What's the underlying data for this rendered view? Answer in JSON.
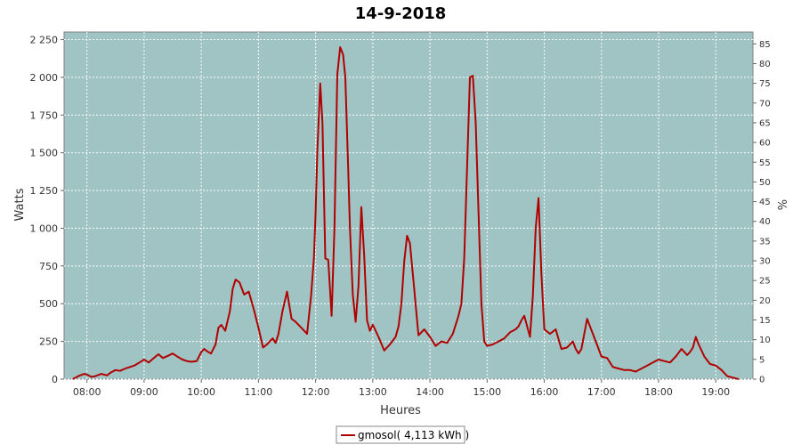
{
  "chart_data": {
    "type": "line",
    "title": "14-9-2018",
    "xlabel": "Heures",
    "ylabel": "Watts",
    "y2label": "%",
    "xlim": [
      7.6,
      19.65
    ],
    "ylim": [
      0,
      2300
    ],
    "y2lim": [
      0,
      88
    ],
    "x_ticks": [
      8,
      9,
      10,
      11,
      12,
      13,
      14,
      15,
      16,
      17,
      18,
      19
    ],
    "x_tick_labels": [
      "08:00",
      "09:00",
      "10:00",
      "11:00",
      "12:00",
      "13:00",
      "14:00",
      "15:00",
      "16:00",
      "17:00",
      "18:00",
      "19:00"
    ],
    "y_ticks": [
      0,
      250,
      500,
      750,
      1000,
      1250,
      1500,
      1750,
      2000,
      2250
    ],
    "y_tick_labels": [
      "0",
      "250",
      "500",
      "750",
      "1 000",
      "1 250",
      "1 500",
      "1 750",
      "2 000",
      "2 250"
    ],
    "y2_ticks": [
      0,
      5,
      10,
      15,
      20,
      25,
      30,
      35,
      40,
      45,
      50,
      55,
      60,
      65,
      70,
      75,
      80,
      85
    ],
    "grid": true,
    "legend_position": "bottom-center",
    "colors": {
      "series": "#b00000",
      "plot_bg": "#a0c4c4",
      "grid": "#ffffff"
    },
    "series": [
      {
        "name": "gmosol( 4,113 kWh )",
        "x": [
          7.75,
          7.85,
          7.95,
          8.0,
          8.08,
          8.15,
          8.25,
          8.35,
          8.42,
          8.5,
          8.58,
          8.67,
          8.75,
          8.83,
          8.92,
          9.0,
          9.08,
          9.17,
          9.25,
          9.33,
          9.42,
          9.5,
          9.58,
          9.67,
          9.75,
          9.83,
          9.92,
          10.0,
          10.05,
          10.1,
          10.17,
          10.25,
          10.3,
          10.35,
          10.42,
          10.5,
          10.55,
          10.6,
          10.67,
          10.75,
          10.83,
          10.92,
          11.0,
          11.08,
          11.15,
          11.25,
          11.3,
          11.35,
          11.42,
          11.5,
          11.58,
          11.65,
          11.75,
          11.85,
          11.92,
          11.97,
          12.0,
          12.03,
          12.08,
          12.12,
          12.17,
          12.22,
          12.28,
          12.33,
          12.38,
          12.43,
          12.48,
          12.52,
          12.57,
          12.6,
          12.65,
          12.7,
          12.75,
          12.8,
          12.85,
          12.9,
          12.95,
          13.0,
          13.1,
          13.2,
          13.3,
          13.4,
          13.45,
          13.5,
          13.55,
          13.6,
          13.65,
          13.7,
          13.8,
          13.9,
          14.0,
          14.1,
          14.2,
          14.3,
          14.4,
          14.5,
          14.55,
          14.6,
          14.65,
          14.7,
          14.75,
          14.8,
          14.85,
          14.9,
          14.95,
          15.0,
          15.1,
          15.2,
          15.3,
          15.4,
          15.5,
          15.55,
          15.6,
          15.65,
          15.7,
          15.75,
          15.8,
          15.85,
          15.9,
          15.95,
          16.0,
          16.1,
          16.2,
          16.3,
          16.4,
          16.5,
          16.55,
          16.6,
          16.65,
          16.7,
          16.75,
          16.8,
          16.9,
          17.0,
          17.1,
          17.2,
          17.3,
          17.4,
          17.5,
          17.6,
          17.7,
          17.8,
          17.9,
          18.0,
          18.1,
          18.2,
          18.3,
          18.4,
          18.5,
          18.55,
          18.6,
          18.65,
          18.7,
          18.8,
          18.9,
          19.0,
          19.1,
          19.2,
          19.3,
          19.4
        ],
        "values": [
          0,
          20,
          35,
          30,
          15,
          20,
          35,
          25,
          45,
          60,
          55,
          70,
          80,
          90,
          110,
          130,
          110,
          140,
          165,
          140,
          155,
          170,
          150,
          130,
          120,
          115,
          120,
          180,
          200,
          185,
          170,
          230,
          340,
          360,
          320,
          450,
          600,
          660,
          640,
          560,
          580,
          460,
          340,
          210,
          230,
          270,
          240,
          300,
          450,
          580,
          400,
          380,
          340,
          300,
          550,
          800,
          1100,
          1500,
          1960,
          1700,
          800,
          790,
          420,
          1000,
          2020,
          2200,
          2150,
          2000,
          1400,
          1000,
          560,
          380,
          620,
          1140,
          820,
          390,
          320,
          360,
          280,
          190,
          230,
          280,
          350,
          500,
          780,
          950,
          900,
          700,
          290,
          330,
          280,
          220,
          250,
          240,
          300,
          420,
          500,
          800,
          1400,
          2000,
          2010,
          1700,
          1100,
          500,
          250,
          220,
          230,
          250,
          270,
          310,
          330,
          350,
          390,
          420,
          350,
          280,
          550,
          1000,
          1200,
          700,
          330,
          300,
          330,
          200,
          210,
          250,
          200,
          170,
          200,
          300,
          400,
          350,
          250,
          150,
          140,
          80,
          70,
          60,
          60,
          50,
          70,
          90,
          110,
          130,
          120,
          110,
          150,
          200,
          160,
          180,
          210,
          280,
          230,
          150,
          100,
          90,
          60,
          20,
          10,
          0
        ]
      }
    ]
  }
}
